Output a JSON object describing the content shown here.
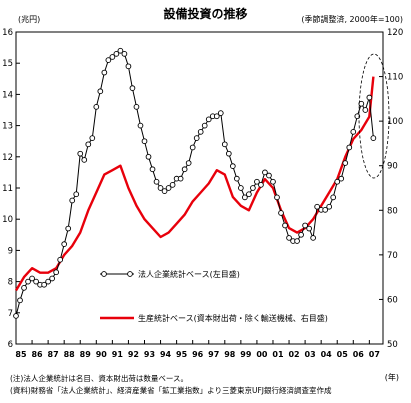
{
  "chart_data": {
    "type": "line",
    "title": "設備投資の推移",
    "unit_left": "(兆円)",
    "unit_right": "(季節調整済, 2000年=100)",
    "x_label": "(年)",
    "x_ticks": [
      "85",
      "86",
      "87",
      "88",
      "89",
      "90",
      "91",
      "92",
      "93",
      "94",
      "95",
      "96",
      "97",
      "98",
      "99",
      "00",
      "01",
      "02",
      "03",
      "04",
      "05",
      "06",
      "07"
    ],
    "y_left": {
      "min": 6,
      "max": 16,
      "ticks": [
        "6",
        "7",
        "8",
        "9",
        "10",
        "11",
        "12",
        "13",
        "14",
        "15",
        "16"
      ]
    },
    "y_right": {
      "min": 50,
      "max": 120,
      "ticks": [
        "50",
        "60",
        "70",
        "80",
        "90",
        "100",
        "110",
        "120"
      ]
    },
    "series": [
      {
        "name": "法人企業統計ベース(左目盛)",
        "axis": "left",
        "color": "#000000",
        "marker": "open-circle",
        "x": [
          1985.0,
          1985.25,
          1985.5,
          1985.75,
          1986.0,
          1986.25,
          1986.5,
          1986.75,
          1987.0,
          1987.25,
          1987.5,
          1987.75,
          1988.0,
          1988.25,
          1988.5,
          1988.75,
          1989.0,
          1989.25,
          1989.5,
          1989.75,
          1990.0,
          1990.25,
          1990.5,
          1990.75,
          1991.0,
          1991.25,
          1991.5,
          1991.75,
          1992.0,
          1992.25,
          1992.5,
          1992.75,
          1993.0,
          1993.25,
          1993.5,
          1993.75,
          1994.0,
          1994.25,
          1994.5,
          1994.75,
          1995.0,
          1995.25,
          1995.5,
          1995.75,
          1996.0,
          1996.25,
          1996.5,
          1996.75,
          1997.0,
          1997.25,
          1997.5,
          1997.75,
          1998.0,
          1998.25,
          1998.5,
          1998.75,
          1999.0,
          1999.25,
          1999.5,
          1999.75,
          2000.0,
          2000.25,
          2000.5,
          2000.75,
          2001.0,
          2001.25,
          2001.5,
          2001.75,
          2002.0,
          2002.25,
          2002.5,
          2002.75,
          2003.0,
          2003.25,
          2003.5,
          2003.75,
          2004.0,
          2004.25,
          2004.5,
          2004.75,
          2005.0,
          2005.25,
          2005.5,
          2005.75,
          2006.0,
          2006.25,
          2006.5,
          2006.75,
          2007.0,
          2007.25
        ],
        "values": [
          6.9,
          7.4,
          7.8,
          8.0,
          8.1,
          8.0,
          7.9,
          7.9,
          8.0,
          8.1,
          8.3,
          8.7,
          9.2,
          9.7,
          10.6,
          10.8,
          12.1,
          11.9,
          12.4,
          12.6,
          13.6,
          14.1,
          14.7,
          15.1,
          15.2,
          15.3,
          15.4,
          15.3,
          14.9,
          14.2,
          13.6,
          13.0,
          12.5,
          12.0,
          11.6,
          11.2,
          11.0,
          10.9,
          11.0,
          11.1,
          11.3,
          11.3,
          11.6,
          11.8,
          12.3,
          12.6,
          12.8,
          13.0,
          13.2,
          13.3,
          13.3,
          13.4,
          12.4,
          12.1,
          11.7,
          11.3,
          11.0,
          10.7,
          10.8,
          11.0,
          11.2,
          11.1,
          11.5,
          11.4,
          11.2,
          10.7,
          10.2,
          9.8,
          9.4,
          9.3,
          9.3,
          9.5,
          9.8,
          9.7,
          9.4,
          10.4,
          10.3,
          10.3,
          10.4,
          10.7,
          11.2,
          11.3,
          11.8,
          12.3,
          12.8,
          13.3,
          13.7,
          13.5,
          13.9,
          12.6
        ]
      },
      {
        "name": "生産統計ベース(資本財出荷・除く輸送機械、右目盛)",
        "axis": "right",
        "color": "#e8000b",
        "x": [
          1985.0,
          1985.5,
          1986.0,
          1986.5,
          1987.0,
          1987.5,
          1988.0,
          1988.5,
          1989.0,
          1989.5,
          1990.0,
          1990.5,
          1991.0,
          1991.5,
          1992.0,
          1992.5,
          1993.0,
          1993.5,
          1994.0,
          1994.5,
          1995.0,
          1995.5,
          1996.0,
          1996.5,
          1997.0,
          1997.5,
          1998.0,
          1998.5,
          1999.0,
          1999.5,
          2000.0,
          2000.5,
          2001.0,
          2001.5,
          2002.0,
          2002.5,
          2003.0,
          2003.5,
          2004.0,
          2004.5,
          2005.0,
          2005.5,
          2006.0,
          2006.5,
          2007.0,
          2007.25
        ],
        "values": [
          62,
          65,
          67,
          66,
          66,
          67,
          70,
          72,
          75,
          80,
          84,
          88,
          89,
          90,
          85,
          81,
          78,
          76,
          74,
          75,
          77,
          79,
          82,
          84,
          86,
          89,
          88,
          83,
          81,
          80,
          84,
          87,
          85,
          80,
          76,
          75,
          76,
          78,
          81,
          84,
          87,
          92,
          96,
          98,
          101,
          110
        ]
      }
    ],
    "notes": [
      "(注)法人企業統計は名目、資本財出荷は数量ベース。",
      "(資料)財務省「法人企業統計」、経済産業省「鉱工業指数」より三菱東京UFJ銀行経済調査室作成"
    ]
  }
}
